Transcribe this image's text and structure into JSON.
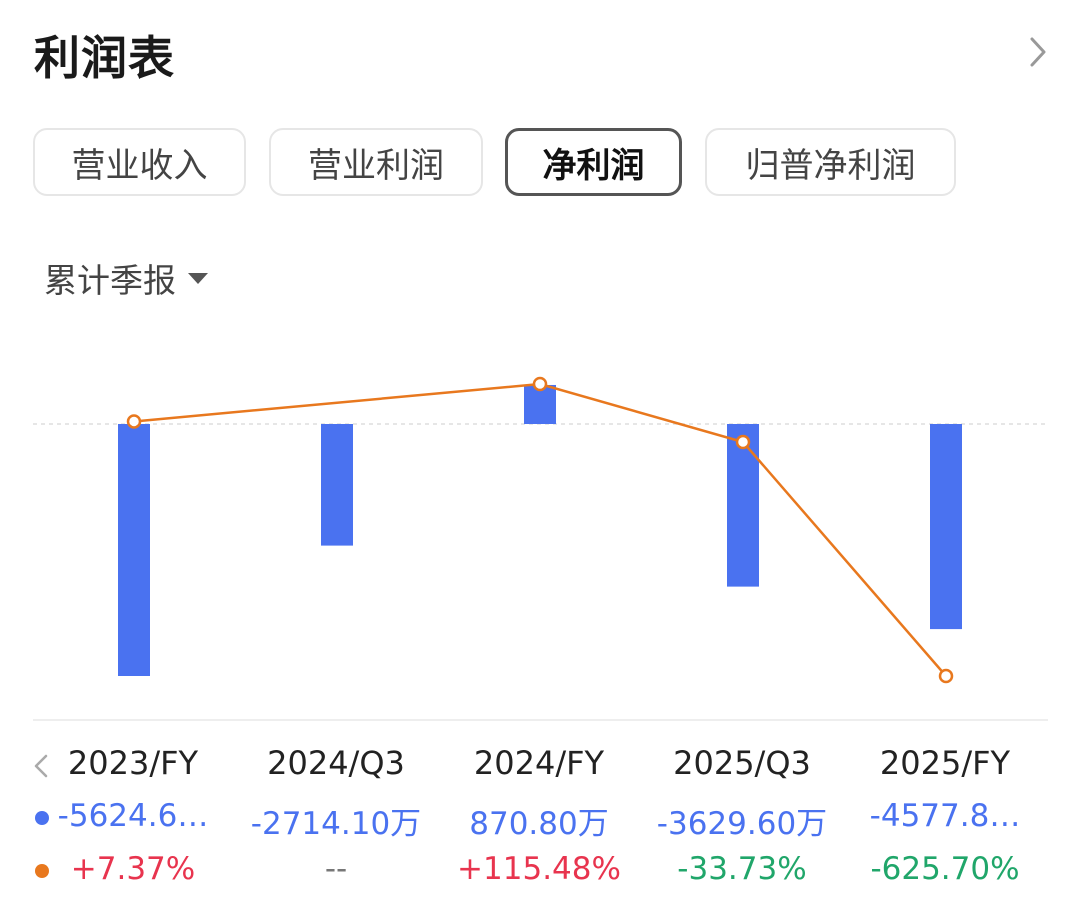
{
  "header": {
    "title": "利润表"
  },
  "tabs": [
    {
      "label": "营业收入",
      "active": false
    },
    {
      "label": "营业利润",
      "active": false
    },
    {
      "label": "净利润",
      "active": true
    },
    {
      "label": "归普净利润",
      "active": false
    }
  ],
  "period_selector": {
    "label": "累计季报"
  },
  "colors": {
    "bar": "#4a72f0",
    "line": "#e8781e",
    "positive": "#e8344e",
    "negative": "#20a66a",
    "neutral": "#777777"
  },
  "chart_data": {
    "type": "bar",
    "categories": [
      "2023/FY",
      "2024/Q3",
      "2024/FY",
      "2025/Q3",
      "2025/FY"
    ],
    "series": [
      {
        "values": [
          -5624.6,
          -2714.1,
          870.8,
          -3629.6,
          -4577.8
        ],
        "unit": "万"
      },
      {
        "values": [
          7.37,
          null,
          115.48,
          -33.73,
          -625.7
        ],
        "unit": "%"
      }
    ],
    "value_labels": [
      "-5624.6…",
      "-2714.10万",
      "870.80万",
      "-3629.60万",
      "-4577.8…"
    ],
    "change_labels": [
      "+7.37%",
      "--",
      "+115.48%",
      "-33.73%",
      "-625.70%"
    ],
    "change_signs": [
      "positive",
      "neutral",
      "positive",
      "negative",
      "negative"
    ]
  }
}
